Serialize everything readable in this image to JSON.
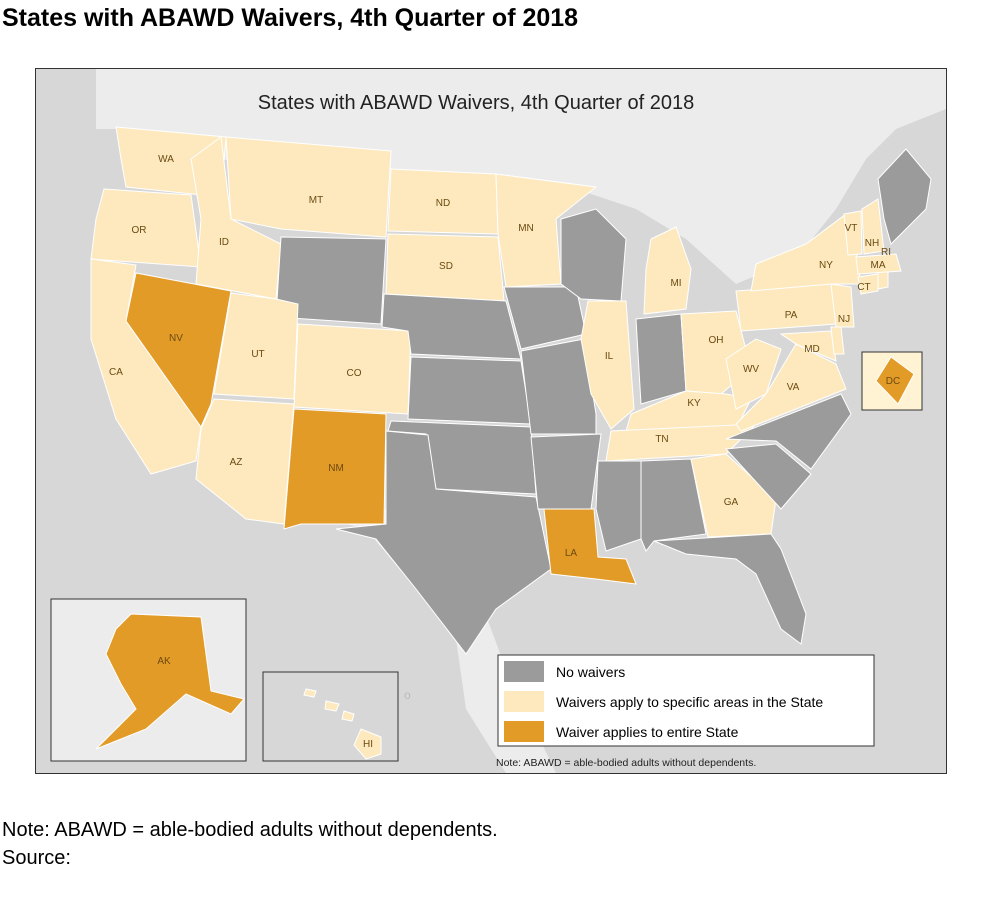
{
  "page_title": "States with ABAWD Waivers, 4th Quarter of 2018",
  "map": {
    "title": "States with ABAWD Waivers, 4th Quarter of 2018",
    "note": "Note: ABAWD = able-bodied adults without dependents.",
    "ocean_label": "o",
    "colors": {
      "no_waivers": "#9b9b9b",
      "partial": "#fde9bd",
      "entire": "#e39b27",
      "land_background": "#ececec",
      "water": "#d7d7d7"
    },
    "legend": [
      {
        "key": "no_waivers",
        "label": "No waivers"
      },
      {
        "key": "partial",
        "label": "Waivers apply to specific areas in the State"
      },
      {
        "key": "entire",
        "label": "Waiver applies to entire State"
      }
    ],
    "states": {
      "WA": "partial",
      "OR": "partial",
      "CA": "partial",
      "ID": "partial",
      "NV": "entire",
      "MT": "partial",
      "WY": "no_waivers",
      "UT": "partial",
      "AZ": "partial",
      "CO": "partial",
      "NM": "entire",
      "ND": "partial",
      "SD": "partial",
      "NE": "no_waivers",
      "KS": "no_waivers",
      "OK": "no_waivers",
      "TX": "no_waivers",
      "MN": "partial",
      "IA": "no_waivers",
      "MO": "no_waivers",
      "AR": "no_waivers",
      "LA": "entire",
      "WI": "no_waivers",
      "IL": "partial",
      "MI": "partial",
      "IN": "no_waivers",
      "OH": "partial",
      "KY": "partial",
      "TN": "partial",
      "MS": "no_waivers",
      "AL": "no_waivers",
      "GA": "partial",
      "FL": "no_waivers",
      "SC": "no_waivers",
      "NC": "no_waivers",
      "VA": "partial",
      "WV": "partial",
      "MD": "partial",
      "DE": "partial",
      "PA": "partial",
      "NJ": "partial",
      "NY": "partial",
      "CT": "partial",
      "RI": "partial",
      "MA": "partial",
      "VT": "partial",
      "NH": "partial",
      "ME": "no_waivers",
      "DC": "entire",
      "AK": "entire",
      "HI": "partial"
    }
  },
  "footnote": {
    "note": "Note: ABAWD = able-bodied adults without dependents.",
    "source": "Source:"
  }
}
